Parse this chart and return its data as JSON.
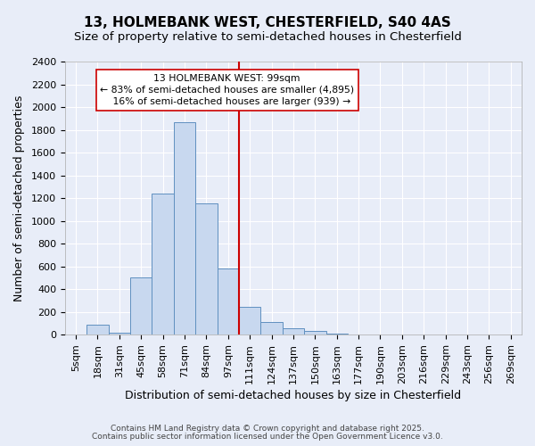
{
  "title_line1": "13, HOLMEBANK WEST, CHESTERFIELD, S40 4AS",
  "title_line2": "Size of property relative to semi-detached houses in Chesterfield",
  "xlabel": "Distribution of semi-detached houses by size in Chesterfield",
  "ylabel": "Number of semi-detached properties",
  "bar_labels": [
    "5sqm",
    "18sqm",
    "31sqm",
    "45sqm",
    "58sqm",
    "71sqm",
    "84sqm",
    "97sqm",
    "111sqm",
    "124sqm",
    "137sqm",
    "150sqm",
    "163sqm",
    "177sqm",
    "190sqm",
    "203sqm",
    "216sqm",
    "229sqm",
    "243sqm",
    "256sqm",
    "269sqm"
  ],
  "bar_values": [
    5,
    85,
    15,
    500,
    1240,
    1870,
    1150,
    580,
    245,
    115,
    60,
    30,
    10,
    5,
    2,
    0,
    0,
    0,
    0,
    0,
    0
  ],
  "bar_color": "#c8d8ef",
  "bar_edge_color": "#6090c0",
  "annotation_title": "13 HOLMEBANK WEST: 99sqm",
  "annotation_line2": "← 83% of semi-detached houses are smaller (4,895)",
  "annotation_line3": "   16% of semi-detached houses are larger (939) →",
  "ylim": [
    0,
    2400
  ],
  "yticks": [
    0,
    200,
    400,
    600,
    800,
    1000,
    1200,
    1400,
    1600,
    1800,
    2000,
    2200,
    2400
  ],
  "footer1": "Contains HM Land Registry data © Crown copyright and database right 2025.",
  "footer2": "Contains public sector information licensed under the Open Government Licence v3.0.",
  "bg_color": "#e8edf8",
  "plot_bg_color": "#e8edf8",
  "grid_color": "#ffffff",
  "red_line_x": 7.5,
  "title_fontsize": 11,
  "subtitle_fontsize": 9.5,
  "label_fontsize": 9,
  "tick_fontsize": 8,
  "footer_fontsize": 6.5
}
